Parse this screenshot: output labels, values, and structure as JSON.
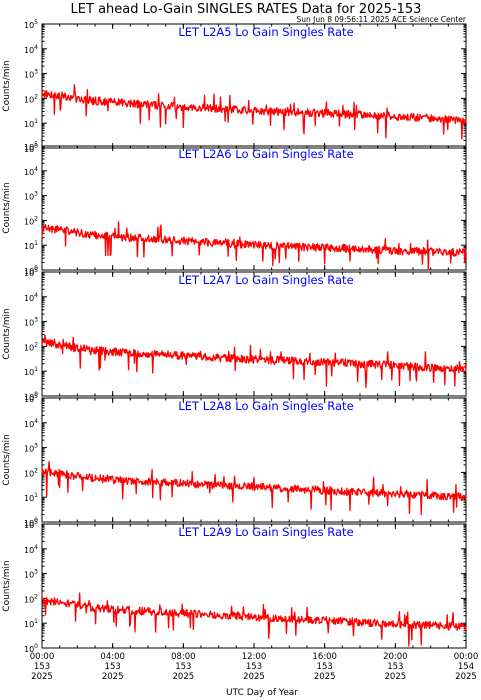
{
  "title": "LET ahead Lo-Gain SINGLES RATES Data for 2025-153",
  "timestamp": "Sun Jun  8 09:56:11 2025 ACE Science Center",
  "xlabel": "UTC Day of Year",
  "colors": {
    "series": "#ff0000",
    "panel_label": "#0000ff",
    "axes": "#000000"
  },
  "chart_data": [
    {
      "type": "line",
      "panel_label": "LET L2A5 Lo Gain Singles Rate",
      "ylabel": "Counts/min",
      "yscale": "log",
      "ylim": [
        1,
        100000
      ],
      "yticks": [
        "10^0",
        "10^1",
        "10^2",
        "10^3",
        "10^4",
        "10^5"
      ],
      "xlim": [
        0,
        24
      ],
      "xticks": [
        "00:00",
        "04:00",
        "08:00",
        "12:00",
        "16:00",
        "20:00",
        "00:00"
      ],
      "xtick_days": [
        "153",
        "153",
        "153",
        "153",
        "153",
        "153",
        "154"
      ],
      "xtick_years": [
        "2025",
        "2025",
        "2025",
        "2025",
        "2025",
        "2025",
        "2025"
      ],
      "series": [
        {
          "x": [
            0,
            1,
            2,
            3,
            4,
            6,
            8,
            10,
            12,
            14,
            16,
            18,
            20,
            22,
            24
          ],
          "values": [
            160,
            130,
            95,
            80,
            70,
            55,
            45,
            38,
            32,
            28,
            25,
            22,
            19,
            16,
            13
          ]
        }
      ]
    },
    {
      "type": "line",
      "panel_label": "LET L2A6 Lo Gain Singles Rate",
      "ylabel": "Counts/min",
      "yscale": "log",
      "ylim": [
        1,
        100000
      ],
      "yticks": [
        "10^0",
        "10^1",
        "10^2",
        "10^3",
        "10^4",
        "10^5"
      ],
      "xlim": [
        0,
        24
      ],
      "xticks": [
        "00:00",
        "04:00",
        "08:00",
        "12:00",
        "16:00",
        "20:00",
        "00:00"
      ],
      "xtick_days": [
        "153",
        "153",
        "153",
        "153",
        "153",
        "153",
        "154"
      ],
      "xtick_years": [
        "2025",
        "2025",
        "2025",
        "2025",
        "2025",
        "2025",
        "2025"
      ],
      "series": [
        {
          "x": [
            0,
            1,
            2,
            3,
            4,
            6,
            8,
            10,
            12,
            14,
            16,
            18,
            20,
            22,
            24
          ],
          "values": [
            50,
            42,
            32,
            26,
            22,
            18,
            15,
            12,
            10,
            9,
            8,
            7,
            6,
            5.5,
            5
          ]
        }
      ]
    },
    {
      "type": "line",
      "panel_label": "LET L2A7 Lo Gain Singles Rate",
      "ylabel": "Counts/min",
      "yscale": "log",
      "ylim": [
        1,
        100000
      ],
      "yticks": [
        "10^0",
        "10^1",
        "10^2",
        "10^3",
        "10^4",
        "10^5"
      ],
      "xlim": [
        0,
        24
      ],
      "xticks": [
        "00:00",
        "04:00",
        "08:00",
        "12:00",
        "16:00",
        "20:00",
        "00:00"
      ],
      "xtick_days": [
        "153",
        "153",
        "153",
        "153",
        "153",
        "153",
        "154"
      ],
      "xtick_years": [
        "2025",
        "2025",
        "2025",
        "2025",
        "2025",
        "2025",
        "2025"
      ],
      "series": [
        {
          "x": [
            0,
            1,
            2,
            3,
            4,
            6,
            8,
            10,
            12,
            14,
            16,
            18,
            20,
            22,
            24
          ],
          "values": [
            140,
            115,
            85,
            72,
            62,
            50,
            42,
            35,
            30,
            26,
            23,
            20,
            17,
            14,
            12
          ]
        }
      ]
    },
    {
      "type": "line",
      "panel_label": "LET L2A8 Lo Gain Singles Rate",
      "ylabel": "Counts/min",
      "yscale": "log",
      "ylim": [
        1,
        100000
      ],
      "yticks": [
        "10^0",
        "10^1",
        "10^2",
        "10^3",
        "10^4",
        "10^5"
      ],
      "xlim": [
        0,
        24
      ],
      "xticks": [
        "00:00",
        "04:00",
        "08:00",
        "12:00",
        "16:00",
        "20:00",
        "00:00"
      ],
      "xtick_days": [
        "153",
        "153",
        "153",
        "153",
        "153",
        "153",
        "154"
      ],
      "xtick_years": [
        "2025",
        "2025",
        "2025",
        "2025",
        "2025",
        "2025",
        "2025"
      ],
      "series": [
        {
          "x": [
            0,
            1,
            2,
            3,
            4,
            6,
            8,
            10,
            12,
            14,
            16,
            18,
            20,
            22,
            24
          ],
          "values": [
            110,
            90,
            70,
            58,
            50,
            42,
            36,
            30,
            26,
            22,
            19,
            16,
            14,
            12,
            10
          ]
        }
      ]
    },
    {
      "type": "line",
      "panel_label": "LET L2A9 Lo Gain Singles Rate",
      "ylabel": "Counts/min",
      "yscale": "log",
      "ylim": [
        1,
        100000
      ],
      "yticks": [
        "10^0",
        "10^1",
        "10^2",
        "10^3",
        "10^4",
        "10^5"
      ],
      "xlim": [
        0,
        24
      ],
      "xticks": [
        "00:00",
        "04:00",
        "08:00",
        "12:00",
        "16:00",
        "20:00",
        "00:00"
      ],
      "xtick_days": [
        "153",
        "153",
        "153",
        "153",
        "153",
        "153",
        "154"
      ],
      "xtick_years": [
        "2025",
        "2025",
        "2025",
        "2025",
        "2025",
        "2025",
        "2025"
      ],
      "series": [
        {
          "x": [
            0,
            1,
            2,
            3,
            4,
            6,
            8,
            10,
            12,
            14,
            16,
            18,
            20,
            22,
            24
          ],
          "values": [
            85,
            70,
            52,
            42,
            36,
            30,
            25,
            21,
            18,
            15,
            13,
            11,
            9,
            8,
            7
          ]
        }
      ]
    }
  ]
}
